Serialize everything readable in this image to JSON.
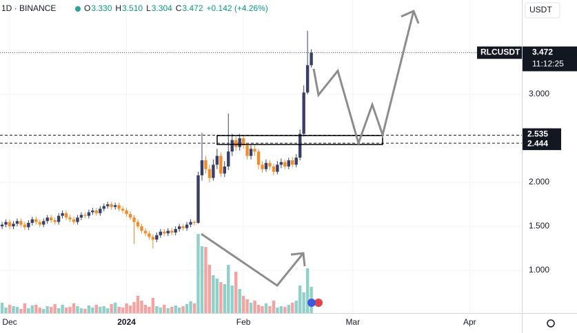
{
  "chart_data": {
    "type": "candlestick",
    "interval_exchange": "1D · BINANCE",
    "ohlc_header": [
      {
        "label": "O",
        "value": "3.330"
      },
      {
        "label": "H",
        "value": "3.510"
      },
      {
        "label": "L",
        "value": "3.304"
      },
      {
        "label": "C",
        "value": "3.472"
      }
    ],
    "change": "+0.142 (+4.26%)",
    "currency": "USDT",
    "symbol": "RLCUSDT",
    "countdown": "11:12:25",
    "last_price": {
      "value": 3.472,
      "label": "3.472"
    },
    "levels": [
      {
        "value": 2.535,
        "label": "2.535"
      },
      {
        "value": 2.444,
        "label": "2.444"
      }
    ],
    "up_color": "#3a3f6a",
    "down_color": "#f28c28",
    "volume_up_color": "#8fd0c9",
    "volume_down_color": "#f4a3a1",
    "grid": true,
    "xlim": [
      -2.56,
      135.83
    ],
    "xticks": [
      {
        "value": 0,
        "label": "Dec"
      },
      {
        "value": 31,
        "label": "2024"
      },
      {
        "value": 62,
        "label": "Feb"
      },
      {
        "value": 91,
        "label": "Mar"
      },
      {
        "value": 122,
        "label": "Apr"
      }
    ],
    "ylim": [
      0.516,
      4.07
    ],
    "yticks": [
      {
        "value": 1,
        "label": "1.000"
      },
      {
        "value": 1.5,
        "label": "1.500"
      },
      {
        "value": 2,
        "label": "2.000"
      },
      {
        "value": 3,
        "label": "3.000"
      }
    ],
    "x": [
      -2,
      -1,
      0,
      1,
      2,
      3,
      4,
      5,
      6,
      7,
      8,
      9,
      10,
      11,
      12,
      13,
      14,
      15,
      16,
      17,
      18,
      19,
      20,
      21,
      22,
      23,
      24,
      25,
      26,
      27,
      28,
      29,
      30,
      31,
      32,
      33,
      34,
      35,
      36,
      37,
      38,
      39,
      40,
      41,
      42,
      43,
      44,
      45,
      46,
      47,
      48,
      49,
      50,
      51,
      52,
      53,
      54,
      55,
      56,
      57,
      58,
      59,
      60,
      61,
      62,
      63,
      64,
      65,
      66,
      67,
      68,
      69,
      70,
      71,
      72,
      73,
      74,
      75,
      76,
      77,
      78,
      79,
      80
    ],
    "open": [
      1.5,
      1.52,
      1.55,
      1.5,
      1.53,
      1.56,
      1.52,
      1.49,
      1.54,
      1.58,
      1.55,
      1.52,
      1.56,
      1.6,
      1.57,
      1.55,
      1.62,
      1.65,
      1.6,
      1.58,
      1.55,
      1.6,
      1.63,
      1.62,
      1.66,
      1.68,
      1.65,
      1.7,
      1.73,
      1.75,
      1.72,
      1.74,
      1.7,
      1.68,
      1.64,
      1.6,
      1.55,
      1.5,
      1.45,
      1.42,
      1.38,
      1.35,
      1.4,
      1.44,
      1.42,
      1.45,
      1.43,
      1.47,
      1.5,
      1.48,
      1.52,
      1.55,
      1.54,
      2.08,
      2.25,
      2.15,
      2.05,
      2.2,
      2.3,
      2.1,
      2.18,
      2.35,
      2.48,
      2.4,
      2.5,
      2.42,
      2.3,
      2.38,
      2.35,
      2.2,
      2.15,
      2.22,
      2.18,
      2.12,
      2.2,
      2.23,
      2.18,
      2.25,
      2.2,
      2.28,
      2.55,
      3.02,
      3.33
    ],
    "high": [
      1.55,
      1.58,
      1.58,
      1.56,
      1.59,
      1.59,
      1.55,
      1.57,
      1.61,
      1.61,
      1.58,
      1.59,
      1.63,
      1.63,
      1.6,
      1.65,
      1.68,
      1.68,
      1.63,
      1.61,
      1.63,
      1.66,
      1.66,
      1.69,
      1.71,
      1.71,
      1.73,
      1.76,
      1.78,
      1.78,
      1.77,
      1.77,
      1.73,
      1.71,
      1.67,
      1.63,
      1.58,
      1.53,
      1.48,
      1.45,
      1.41,
      1.43,
      1.47,
      1.47,
      1.48,
      1.48,
      1.5,
      1.53,
      1.53,
      1.55,
      1.58,
      1.57,
      2.12,
      2.56,
      2.3,
      2.2,
      2.26,
      2.38,
      2.34,
      2.24,
      2.78,
      2.55,
      2.52,
      2.55,
      2.53,
      2.45,
      2.42,
      2.42,
      2.38,
      2.24,
      2.26,
      2.25,
      2.21,
      2.24,
      2.27,
      2.26,
      2.28,
      2.29,
      2.32,
      2.6,
      3.1,
      3.72,
      3.51
    ],
    "low": [
      1.47,
      1.49,
      1.47,
      1.47,
      1.5,
      1.49,
      1.46,
      1.46,
      1.51,
      1.52,
      1.49,
      1.49,
      1.53,
      1.54,
      1.52,
      1.52,
      1.59,
      1.57,
      1.55,
      1.52,
      1.52,
      1.57,
      1.59,
      1.59,
      1.63,
      1.62,
      1.62,
      1.67,
      1.7,
      1.69,
      1.69,
      1.67,
      1.65,
      1.61,
      1.57,
      1.3,
      1.47,
      1.42,
      1.39,
      1.35,
      1.25,
      1.32,
      1.37,
      1.39,
      1.39,
      1.4,
      1.4,
      1.44,
      1.45,
      1.45,
      1.49,
      1.51,
      1.53,
      2.02,
      2.1,
      2.0,
      2.02,
      2.15,
      2.06,
      2.06,
      2.14,
      2.3,
      2.36,
      2.36,
      2.38,
      2.26,
      2.26,
      2.3,
      2.15,
      2.11,
      2.12,
      2.14,
      2.08,
      2.09,
      2.16,
      2.15,
      2.15,
      2.17,
      2.17,
      2.25,
      2.52,
      3.0,
      3.304
    ],
    "close": [
      1.52,
      1.55,
      1.5,
      1.53,
      1.56,
      1.52,
      1.49,
      1.54,
      1.58,
      1.55,
      1.52,
      1.56,
      1.6,
      1.57,
      1.55,
      1.62,
      1.65,
      1.6,
      1.58,
      1.55,
      1.6,
      1.63,
      1.62,
      1.66,
      1.68,
      1.65,
      1.7,
      1.73,
      1.75,
      1.72,
      1.74,
      1.7,
      1.68,
      1.64,
      1.6,
      1.55,
      1.5,
      1.45,
      1.42,
      1.38,
      1.35,
      1.4,
      1.44,
      1.42,
      1.45,
      1.43,
      1.47,
      1.5,
      1.48,
      1.52,
      1.55,
      1.54,
      2.08,
      2.25,
      2.15,
      2.05,
      2.2,
      2.3,
      2.1,
      2.18,
      2.35,
      2.48,
      2.4,
      2.5,
      2.42,
      2.3,
      2.38,
      2.35,
      2.2,
      2.15,
      2.22,
      2.18,
      2.12,
      2.2,
      2.23,
      2.18,
      2.25,
      2.2,
      2.28,
      2.55,
      3.02,
      3.33,
      3.472
    ],
    "volume": [
      15,
      8,
      12,
      10,
      9,
      6,
      14,
      7,
      11,
      12,
      8,
      6,
      10,
      9,
      13,
      7,
      12,
      8,
      9,
      14,
      10,
      7,
      6,
      11,
      8,
      12,
      9,
      10,
      7,
      13,
      15,
      9,
      8,
      14,
      11,
      16,
      25,
      18,
      12,
      9,
      22,
      10,
      8,
      12,
      7,
      9,
      11,
      8,
      10,
      13,
      17,
      14,
      115,
      97,
      96,
      70,
      55,
      50,
      45,
      42,
      70,
      40,
      60,
      35,
      25,
      20,
      15,
      18,
      12,
      10,
      14,
      10,
      18,
      8,
      10,
      9,
      12,
      15,
      18,
      40,
      30,
      65,
      38
    ]
  }
}
